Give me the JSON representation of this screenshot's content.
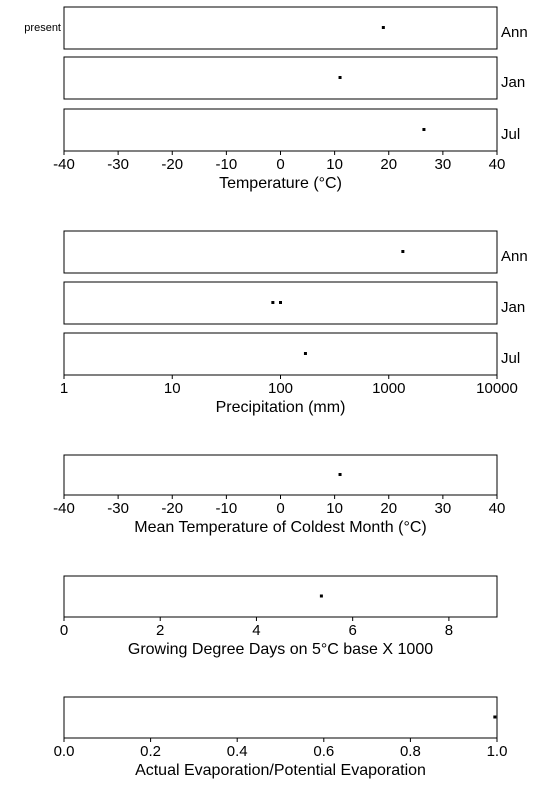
{
  "chart_data": [
    {
      "type": "scatter",
      "xlabel": "Temperature (°C)",
      "xlim": [
        -40,
        40
      ],
      "ticks": [
        -40,
        -30,
        -20,
        -10,
        0,
        10,
        20,
        30,
        40
      ],
      "tick_labels": [
        "-40",
        "-30",
        "-20",
        "-10",
        "0",
        "10",
        "20",
        "30",
        "40"
      ],
      "row_marker": "present",
      "rows": [
        {
          "name": "Ann",
          "values": [
            19
          ]
        },
        {
          "name": "Jan",
          "values": [
            11
          ]
        },
        {
          "name": "Jul",
          "values": [
            26.5
          ]
        }
      ]
    },
    {
      "type": "scatter",
      "xlabel": "Precipitation (mm)",
      "xscale": "log",
      "xlim": [
        1,
        10000
      ],
      "ticks": [
        1,
        10,
        100,
        1000,
        10000
      ],
      "tick_labels": [
        "1",
        "10",
        "100",
        "1000",
        "10000"
      ],
      "rows": [
        {
          "name": "Ann",
          "values": [
            1350
          ]
        },
        {
          "name": "Jan",
          "values": [
            85,
            100
          ]
        },
        {
          "name": "Jul",
          "values": [
            170
          ]
        }
      ]
    },
    {
      "type": "scatter",
      "xlabel": "Mean Temperature of Coldest Month (°C)",
      "xlim": [
        -40,
        40
      ],
      "ticks": [
        -40,
        -30,
        -20,
        -10,
        0,
        10,
        20,
        30,
        40
      ],
      "tick_labels": [
        "-40",
        "-30",
        "-20",
        "-10",
        "0",
        "10",
        "20",
        "30",
        "40"
      ],
      "rows": [
        {
          "name": "",
          "values": [
            11
          ]
        }
      ]
    },
    {
      "type": "scatter",
      "xlabel": "Growing Degree Days on 5°C base X 1000",
      "xlim": [
        0,
        9
      ],
      "ticks": [
        0,
        2,
        4,
        6,
        8
      ],
      "tick_labels": [
        "0",
        "2",
        "4",
        "6",
        "8"
      ],
      "rows": [
        {
          "name": "",
          "values": [
            5.35
          ]
        }
      ]
    },
    {
      "type": "scatter",
      "xlabel": "Actual Evaporation/Potential Evaporation",
      "xlim": [
        0,
        1
      ],
      "ticks": [
        0,
        0.2,
        0.4,
        0.6,
        0.8,
        1.0
      ],
      "tick_labels": [
        "0.0",
        "0.2",
        "0.4",
        "0.6",
        "0.8",
        "1.0"
      ],
      "rows": [
        {
          "name": "",
          "values": [
            0.995
          ]
        }
      ]
    }
  ]
}
